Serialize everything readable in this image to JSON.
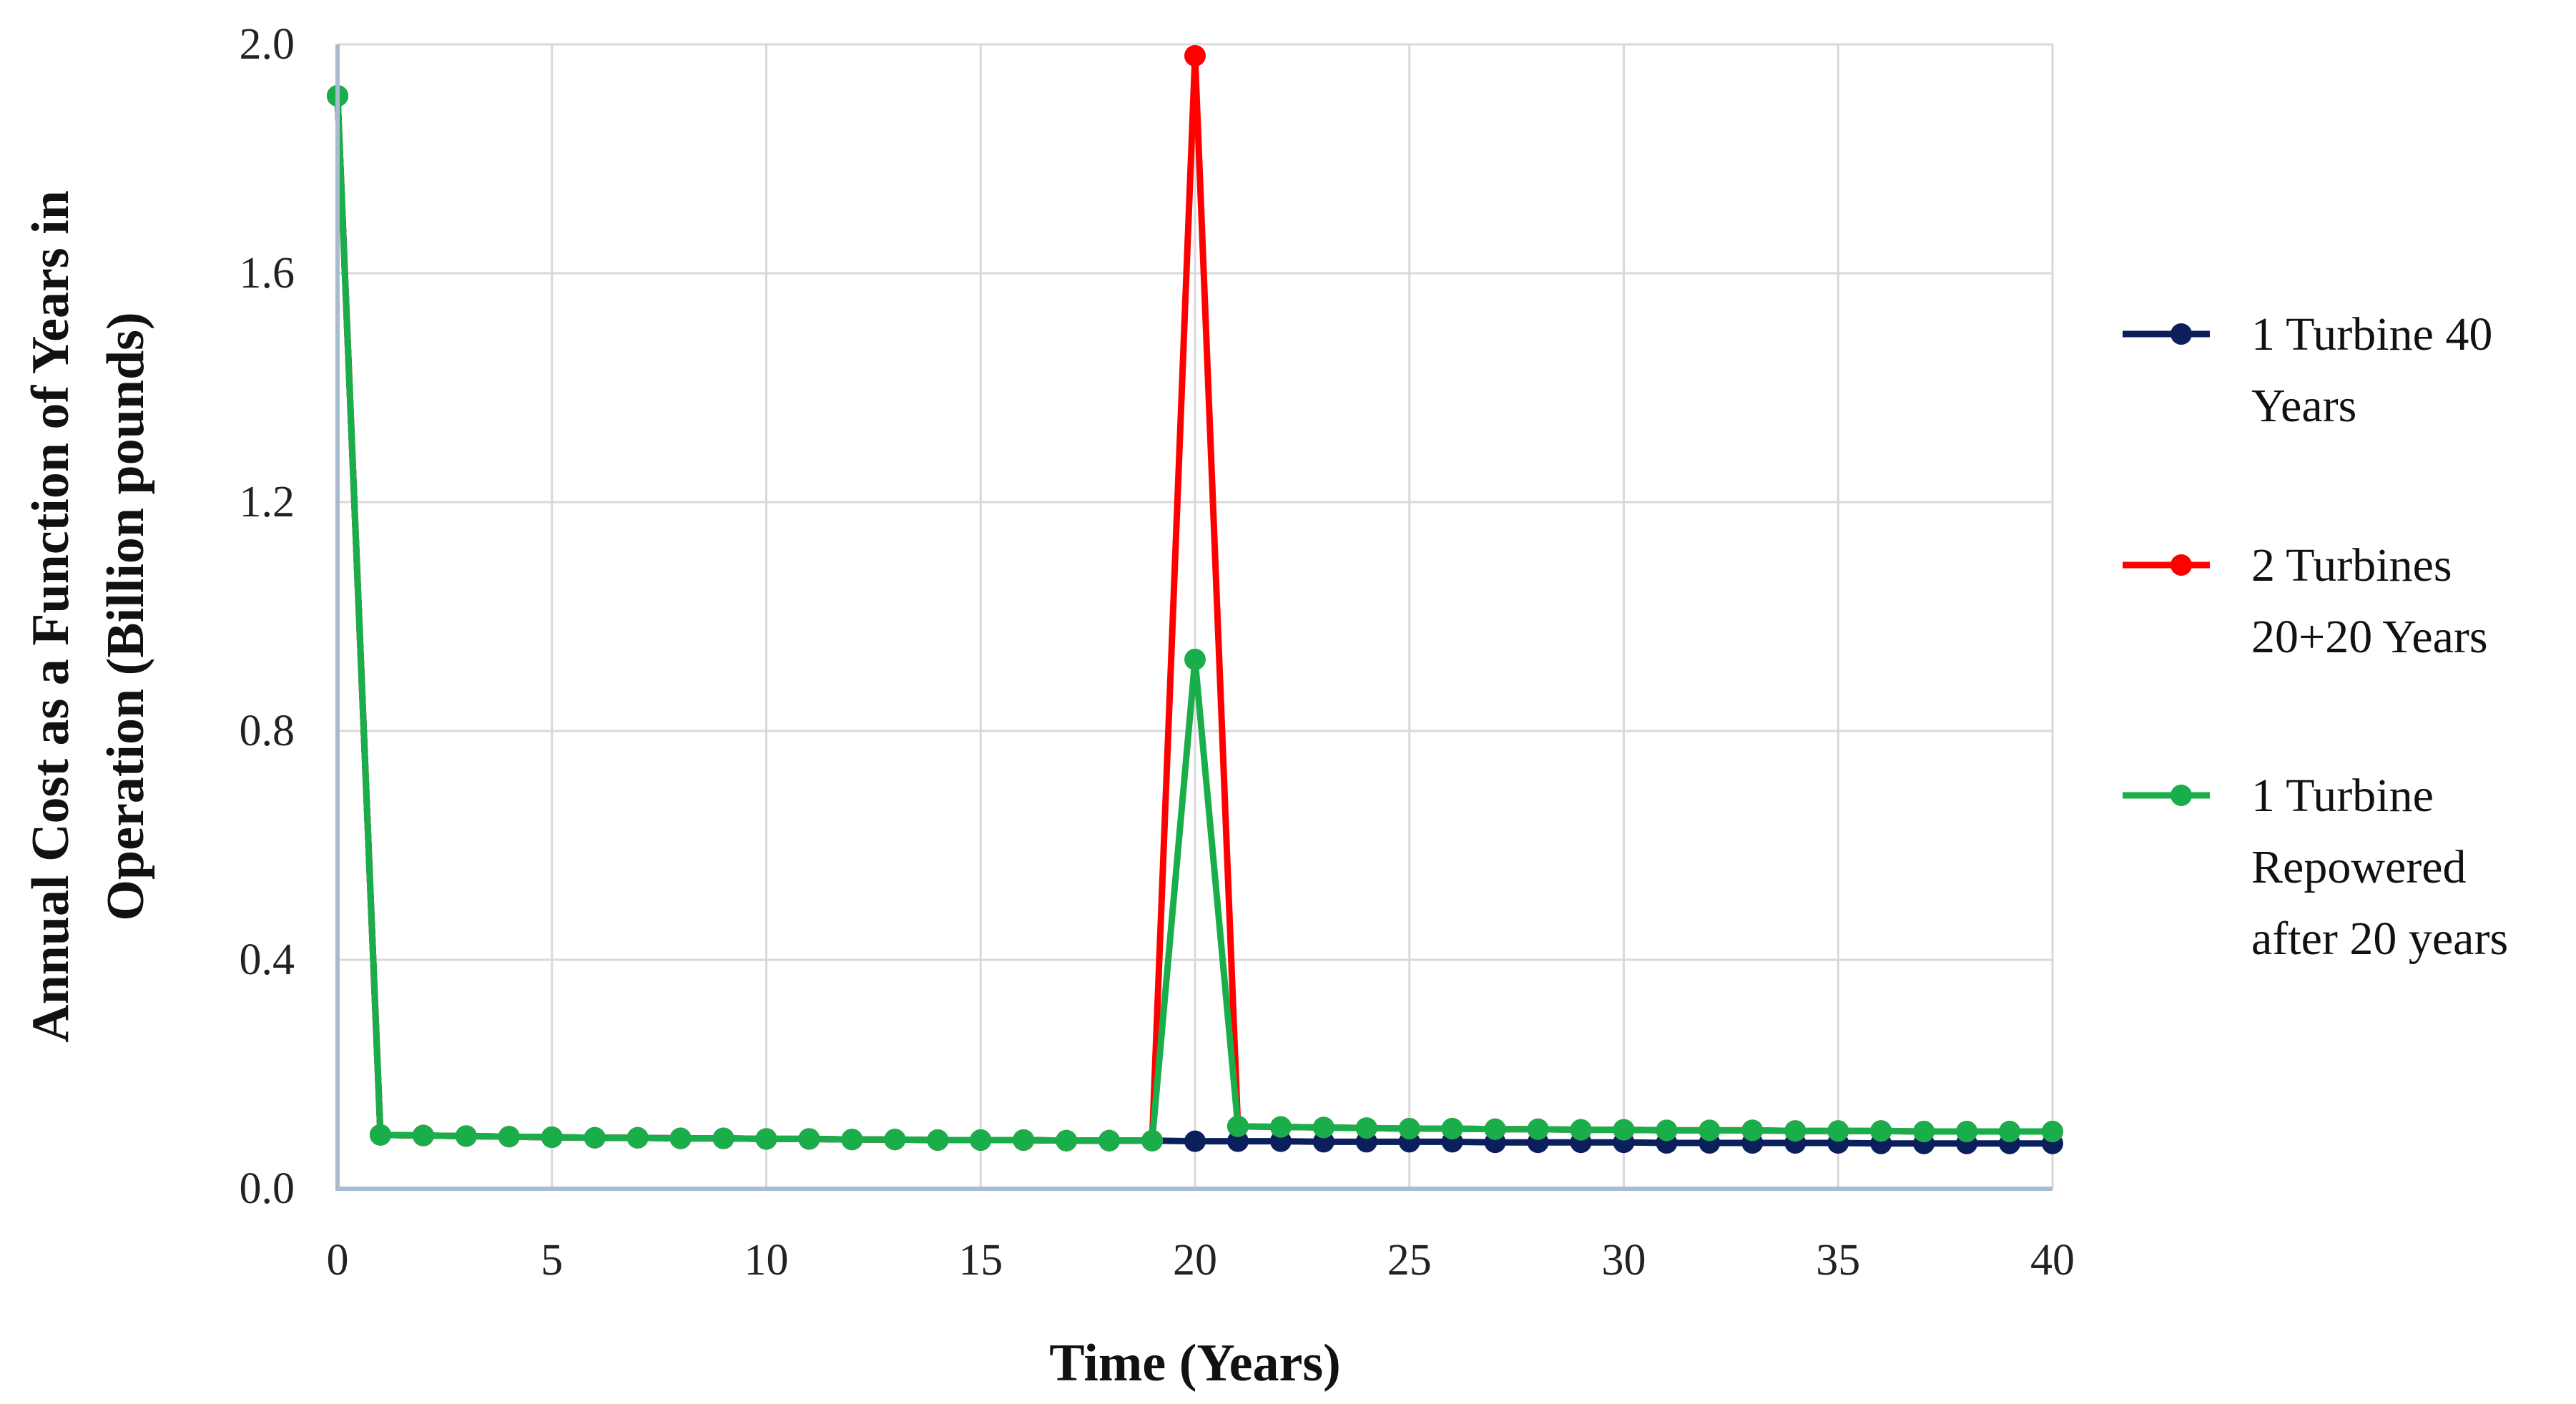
{
  "chart_data": {
    "type": "line",
    "xlabel": "Time (Years)",
    "ylabel_lines": [
      "Annual Cost as a Function of Years in",
      "Operation (Billion pounds)"
    ],
    "xlim": [
      0,
      40
    ],
    "ylim": [
      0,
      2.0
    ],
    "x_ticks": [
      0,
      5,
      10,
      15,
      20,
      25,
      30,
      35,
      40
    ],
    "y_ticks": [
      "0.0",
      "0.4",
      "0.8",
      "1.2",
      "1.6",
      "2.0"
    ],
    "grid": true,
    "legend_position": "right",
    "x": [
      0,
      1,
      2,
      3,
      4,
      5,
      6,
      7,
      8,
      9,
      10,
      11,
      12,
      13,
      14,
      15,
      16,
      17,
      18,
      19,
      20,
      21,
      22,
      23,
      24,
      25,
      26,
      27,
      28,
      29,
      30,
      31,
      32,
      33,
      34,
      35,
      36,
      37,
      38,
      39,
      40
    ],
    "series": [
      {
        "name": "1 Turbine 40 Years",
        "legend_lines": [
          "1 Turbine 40",
          "Years"
        ],
        "color": "#0b1f5c",
        "values": [
          1.91,
          0.094,
          0.093,
          0.092,
          0.091,
          0.09,
          0.089,
          0.089,
          0.088,
          0.088,
          0.087,
          0.087,
          0.086,
          0.086,
          0.085,
          0.085,
          0.085,
          0.084,
          0.084,
          0.084,
          0.083,
          0.083,
          0.083,
          0.082,
          0.082,
          0.082,
          0.082,
          0.081,
          0.081,
          0.081,
          0.081,
          0.08,
          0.08,
          0.08,
          0.08,
          0.08,
          0.079,
          0.079,
          0.079,
          0.079,
          0.079
        ]
      },
      {
        "name": "2 Turbines 20+20 Years",
        "legend_lines": [
          "2 Turbines",
          "20+20 Years"
        ],
        "color": "#ff0000",
        "values": [
          1.91,
          0.094,
          0.093,
          0.092,
          0.091,
          0.09,
          0.089,
          0.089,
          0.088,
          0.088,
          0.087,
          0.087,
          0.086,
          0.086,
          0.085,
          0.085,
          0.085,
          0.084,
          0.084,
          0.084,
          1.98,
          0.109,
          0.108,
          0.107,
          0.106,
          0.105,
          0.105,
          0.104,
          0.104,
          0.103,
          0.103,
          0.102,
          0.102,
          0.102,
          0.101,
          0.101,
          0.101,
          0.1,
          0.1,
          0.1,
          0.1
        ]
      },
      {
        "name": "1 Turbine Repowered after 20 years",
        "legend_lines": [
          "1 Turbine",
          "Repowered",
          "after 20 years"
        ],
        "color": "#1aae4b",
        "values": [
          1.91,
          0.094,
          0.093,
          0.092,
          0.091,
          0.09,
          0.089,
          0.089,
          0.088,
          0.088,
          0.087,
          0.087,
          0.086,
          0.086,
          0.085,
          0.085,
          0.085,
          0.084,
          0.084,
          0.084,
          0.925,
          0.109,
          0.108,
          0.107,
          0.106,
          0.105,
          0.105,
          0.104,
          0.104,
          0.103,
          0.103,
          0.102,
          0.102,
          0.102,
          0.101,
          0.101,
          0.101,
          0.1,
          0.1,
          0.1,
          0.1
        ]
      }
    ]
  }
}
